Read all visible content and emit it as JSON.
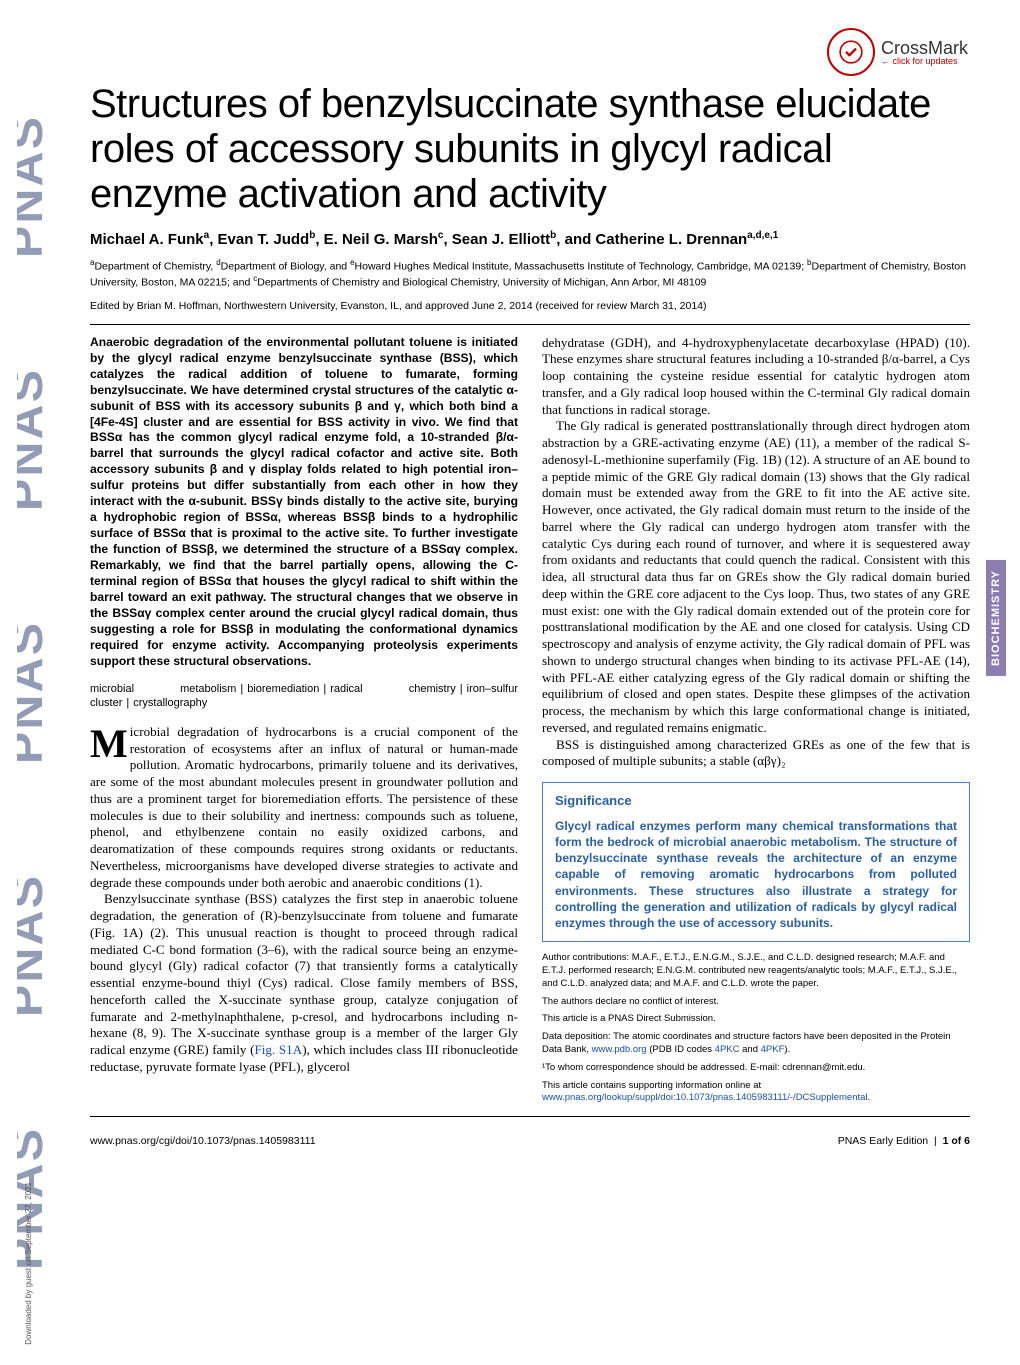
{
  "crossmark": {
    "label": "CrossMark",
    "sub": "← click for updates"
  },
  "side_tag": "BIOCHEMISTRY",
  "title": "Structures of benzylsuccinate synthase elucidate roles of accessory subunits in glycyl radical enzyme activation and activity",
  "authors_html": "Michael A. Funk<sup>a</sup>, Evan T. Judd<sup>b</sup>, E. Neil G. Marsh<sup>c</sup>, Sean J. Elliott<sup>b</sup>, and Catherine L. Drennan<sup>a,d,e,1</sup>",
  "affils_html": "<sup>a</sup>Department of Chemistry, <sup>d</sup>Department of Biology, and <sup>e</sup>Howard Hughes Medical Institute, Massachusetts Institute of Technology, Cambridge, MA 02139; <sup>b</sup>Department of Chemistry, Boston University, Boston, MA 02215; and <sup>c</sup>Departments of Chemistry and Biological Chemistry, University of Michigan, Ann Arbor, MI 48109",
  "edited": "Edited by Brian M. Hoffman, Northwestern University, Evanston, IL, and approved June 2, 2014 (received for review March 31, 2014)",
  "abstract": "Anaerobic degradation of the environmental pollutant toluene is initiated by the glycyl radical enzyme benzylsuccinate synthase (BSS), which catalyzes the radical addition of toluene to fumarate, forming benzylsuccinate. We have determined crystal structures of the catalytic α-subunit of BSS with its accessory subunits β and γ, which both bind a [4Fe-4S] cluster and are essential for BSS activity in vivo. We find that BSSα has the common glycyl radical enzyme fold, a 10-stranded β/α-barrel that surrounds the glycyl radical cofactor and active site. Both accessory subunits β and γ display folds related to high potential iron–sulfur proteins but differ substantially from each other in how they interact with the α-subunit. BSSγ binds distally to the active site, burying a hydrophobic region of BSSα, whereas BSSβ binds to a hydrophilic surface of BSSα that is proximal to the active site. To further investigate the function of BSSβ, we determined the structure of a BSSαγ complex. Remarkably, we find that the barrel partially opens, allowing the C-terminal region of BSSα that houses the glycyl radical to shift within the barrel toward an exit pathway. The structural changes that we observe in the BSSαγ complex center around the crucial glycyl radical domain, thus suggesting a role for BSSβ in modulating the conformational dynamics required for enzyme activity. Accompanying proteolysis experiments support these structural observations.",
  "keywords": [
    "microbial metabolism",
    "bioremediation",
    "radical chemistry",
    "iron–sulfur cluster",
    "crystallography"
  ],
  "body": {
    "p1_first_letter": "M",
    "p1_rest": "icrobial degradation of hydrocarbons is a crucial component of the restoration of ecosystems after an influx of natural or human-made pollution. Aromatic hydrocarbons, primarily toluene and its derivatives, are some of the most abundant molecules present in groundwater pollution and thus are a prominent target for bioremediation efforts. The persistence of these molecules is due to their solubility and inertness: compounds such as toluene, phenol, and ethylbenzene contain no easily oxidized carbons, and dearomatization of these compounds requires strong oxidants or reductants. Nevertheless, microorganisms have developed diverse strategies to activate and degrade these compounds under both aerobic and anaerobic conditions (1).",
    "p2": "Benzylsuccinate synthase (BSS) catalyzes the first step in anaerobic toluene degradation, the generation of (R)-benzylsuccinate from toluene and fumarate (Fig. 1A) (2). This unusual reaction is thought to proceed through radical mediated C-C bond formation (3–6), with the radical source being an enzyme-bound glycyl (Gly) radical cofactor (7) that transiently forms a catalytically essential enzyme-bound thiyl (Cys) radical. Close family members of BSS, henceforth called the X-succinate synthase group, catalyze conjugation of fumarate and 2-methylnaphthalene, p-cresol, and hydrocarbons including n-hexane (8, 9). The X-succinate synthase group is a member of the larger Gly radical enzyme (GRE) family (",
    "p2_link": "Fig. S1A",
    "p2_tail": "), which includes class III ribonucleotide reductase, pyruvate formate lyase (PFL), glycerol",
    "p3": "dehydratase (GDH), and 4-hydroxyphenylacetate decarboxylase (HPAD) (10). These enzymes share structural features including a 10-stranded β/α-barrel, a Cys loop containing the cysteine residue essential for catalytic hydrogen atom transfer, and a Gly radical loop housed within the C-terminal Gly radical domain that functions in radical storage.",
    "p4": "The Gly radical is generated posttranslationally through direct hydrogen atom abstraction by a GRE-activating enzyme (AE) (11), a member of the radical S-adenosyl-L-methionine superfamily (Fig. 1B) (12). A structure of an AE bound to a peptide mimic of the GRE Gly radical domain (13) shows that the Gly radical domain must be extended away from the GRE to fit into the AE active site. However, once activated, the Gly radical domain must return to the inside of the barrel where the Gly radical can undergo hydrogen atom transfer with the catalytic Cys during each round of turnover, and where it is sequestered away from oxidants and reductants that could quench the radical. Consistent with this idea, all structural data thus far on GREs show the Gly radical domain buried deep within the GRE core adjacent to the Cys loop. Thus, two states of any GRE must exist: one with the Gly radical domain extended out of the protein core for posttranslational modification by the AE and one closed for catalysis. Using CD spectroscopy and analysis of enzyme activity, the Gly radical domain of PFL was shown to undergo structural changes when binding to its activase PFL-AE (14), with PFL-AE either catalyzing egress of the Gly radical domain or shifting the equilibrium of closed and open states. Despite these glimpses of the activation process, the mechanism by which this large conformational change is initiated, reversed, and regulated remains enigmatic.",
    "p5": "BSS is distinguished among characterized GREs as one of the few that is composed of multiple subunits; a stable (αβγ)₂"
  },
  "sig": {
    "heading": "Significance",
    "text": "Glycyl radical enzymes perform many chemical transformations that form the bedrock of microbial anaerobic metabolism. The structure of benzylsuccinate synthase reveals the architecture of an enzyme capable of removing aromatic hydrocarbons from polluted environments. These structures also illustrate a strategy for controlling the generation and utilization of radicals by glycyl radical enzymes through the use of accessory subunits."
  },
  "credits": {
    "author_contrib": "Author contributions: M.A.F., E.T.J., E.N.G.M., S.J.E., and C.L.D. designed research; M.A.F. and E.T.J. performed research; E.N.G.M. contributed new reagents/analytic tools; M.A.F., E.T.J., S.J.E., and C.L.D. analyzed data; and M.A.F. and C.L.D. wrote the paper.",
    "conflict": "The authors declare no conflict of interest.",
    "direct": "This article is a PNAS Direct Submission.",
    "deposition_pre": "Data deposition: The atomic coordinates and structure factors have been deposited in the Protein Data Bank, ",
    "deposition_link": "www.pdb.org",
    "deposition_mid": " (PDB ID codes ",
    "pdb1": "4PKC",
    "pdb_and": " and ",
    "pdb2": "4PKF",
    "deposition_tail": ").",
    "corr": "¹To whom correspondence should be addressed. E-mail: cdrennan@mit.edu.",
    "si_pre": "This article contains supporting information online at ",
    "si_link": "www.pnas.org/lookup/suppl/doi:10.1073/pnas.1405983111/-/DCSupplemental",
    "si_tail": "."
  },
  "footer": {
    "left": "www.pnas.org/cgi/doi/10.1073/pnas.1405983111",
    "right_a": "PNAS Early Edition",
    "right_b": "1 of 6"
  },
  "dl_note": "Downloaded by guest on September 27, 2021",
  "colors": {
    "crossmark_ring": "#b00",
    "link": "#1a4fa8",
    "sig_border": "#4a7fb8",
    "sig_text": "#2a5fa0",
    "side_tag_bg": "#8c7db0"
  }
}
